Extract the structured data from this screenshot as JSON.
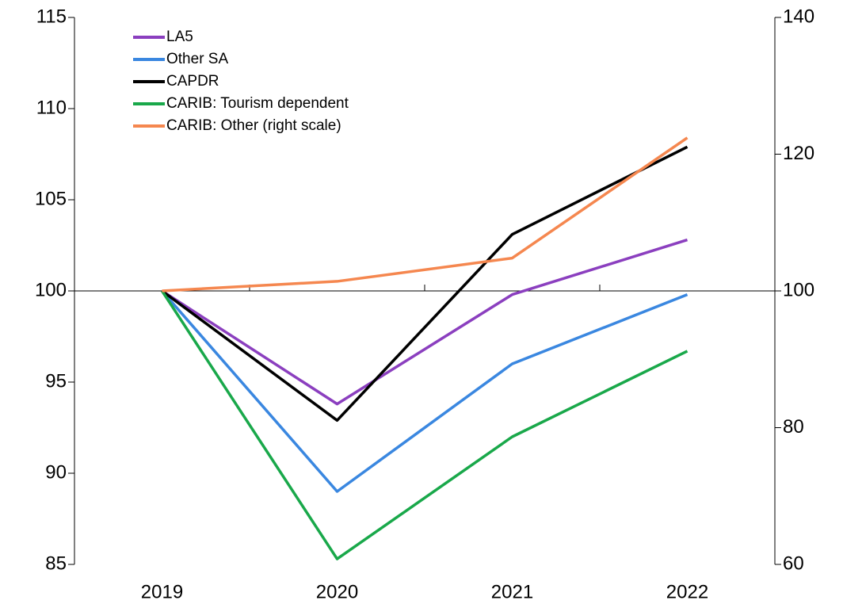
{
  "chart_data": {
    "type": "line",
    "categories": [
      "2019",
      "2020",
      "2021",
      "2022"
    ],
    "series": [
      {
        "name": "LA5",
        "color": "#8b3fbf",
        "values": [
          100,
          93.8,
          99.8,
          102.8
        ]
      },
      {
        "name": "Other SA",
        "color": "#3a87e0",
        "values": [
          100,
          89.0,
          96.0,
          99.8
        ]
      },
      {
        "name": "CAPDR",
        "color": "#000000",
        "values": [
          100,
          92.9,
          103.1,
          107.9
        ]
      },
      {
        "name": "CARIB: Tourism dependent",
        "color": "#19a84a",
        "values": [
          100,
          85.3,
          92.0,
          96.7
        ]
      },
      {
        "name": "CARIB: Other (right scale)",
        "color": "#f5874f",
        "values": [
          100,
          101.4,
          104.8,
          122.4
        ],
        "axis": "y2"
      }
    ],
    "ylim": [
      85,
      115
    ],
    "yticks": [
      85,
      90,
      95,
      100,
      105,
      110,
      115
    ],
    "y2lim": [
      60,
      140
    ],
    "y2ticks": [
      60,
      80,
      100,
      120,
      140
    ],
    "x_axis_crosses": 100,
    "legend": "top-left"
  }
}
